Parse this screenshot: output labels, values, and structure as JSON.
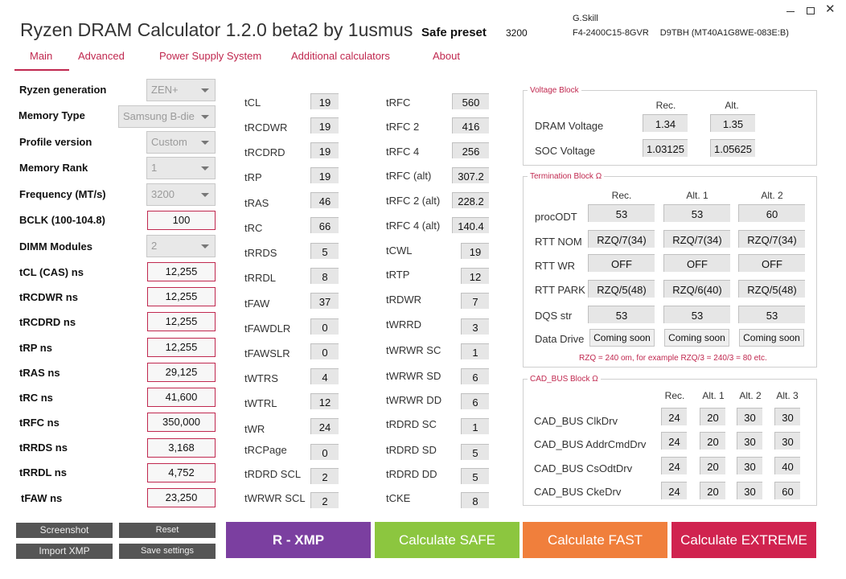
{
  "header": {
    "title": "Ryzen DRAM Calculator 1.2.0 beta2 by 1usmus",
    "preset_label": "Safe preset",
    "preset_value": "3200",
    "memory_vendor": "G.Skill",
    "memory_model": "F4-2400C15-8GVR",
    "memory_chip": "D9TBH (MT40A1G8WE-083E:B)"
  },
  "tabs": [
    "Main",
    "Advanced",
    "Power Supply System",
    "Additional calculators",
    "About"
  ],
  "left": {
    "ryzen_generation": {
      "label": "Ryzen generation",
      "value": "ZEN+"
    },
    "memory_type": {
      "label": "Memory Type",
      "value": "Samsung B-die"
    },
    "profile_version": {
      "label": "Profile version",
      "value": "Custom"
    },
    "memory_rank": {
      "label": "Memory Rank",
      "value": "1"
    },
    "frequency": {
      "label": "Frequency (MT/s)",
      "value": "3200"
    },
    "bclk": {
      "label": "BCLK (100-104.8)",
      "value": "100"
    },
    "dimm_modules": {
      "label": "DIMM Modules",
      "value": "2"
    },
    "ns_inputs": [
      {
        "label": "tCL (CAS) ns",
        "value": "12,255"
      },
      {
        "label": "tRCDWR ns",
        "value": "12,255"
      },
      {
        "label": "tRCDRD ns",
        "value": "12,255"
      },
      {
        "label": "tRP ns",
        "value": "12,255"
      },
      {
        "label": "tRAS ns",
        "value": "29,125"
      },
      {
        "label": "tRC ns",
        "value": "41,600"
      },
      {
        "label": "tRFC ns",
        "value": "350,000"
      },
      {
        "label": "tRRDS ns",
        "value": "3,168"
      },
      {
        "label": "tRRDL ns",
        "value": "4,752"
      },
      {
        "label": "tFAW ns",
        "value": "23,250"
      }
    ]
  },
  "timings_col1": [
    {
      "label": "tCL",
      "value": "19"
    },
    {
      "label": "tRCDWR",
      "value": "19"
    },
    {
      "label": "tRCDRD",
      "value": "19"
    },
    {
      "label": "tRP",
      "value": "19"
    },
    {
      "label": "tRAS",
      "value": "46"
    },
    {
      "label": "tRC",
      "value": "66"
    },
    {
      "label": "tRRDS",
      "value": "5"
    },
    {
      "label": "tRRDL",
      "value": "8"
    },
    {
      "label": "tFAW",
      "value": "37"
    },
    {
      "label": "tFAWDLR",
      "value": "0"
    },
    {
      "label": "tFAWSLR",
      "value": "0"
    },
    {
      "label": "tWTRS",
      "value": "4"
    },
    {
      "label": "tWTRL",
      "value": "12"
    },
    {
      "label": "tWR",
      "value": "24"
    },
    {
      "label": "tRCPage",
      "value": "0"
    },
    {
      "label": "tRDRD SCL",
      "value": "2"
    },
    {
      "label": "tWRWR SCL",
      "value": "2"
    }
  ],
  "timings_col2": [
    {
      "label": "tRFC",
      "value": "560"
    },
    {
      "label": "tRFC 2",
      "value": "416"
    },
    {
      "label": "tRFC 4",
      "value": "256"
    },
    {
      "label": "tRFC (alt)",
      "value": "307.2"
    },
    {
      "label": "tRFC 2 (alt)",
      "value": "228.2"
    },
    {
      "label": "tRFC 4 (alt)",
      "value": "140.4"
    },
    {
      "label": "tCWL",
      "value": "19"
    },
    {
      "label": "tRTP",
      "value": "12"
    },
    {
      "label": "tRDWR",
      "value": "7"
    },
    {
      "label": "tWRRD",
      "value": "3"
    },
    {
      "label": "tWRWR SC",
      "value": "1"
    },
    {
      "label": "tWRWR SD",
      "value": "6"
    },
    {
      "label": "tWRWR DD",
      "value": "6"
    },
    {
      "label": "tRDRD SC",
      "value": "1"
    },
    {
      "label": "tRDRD SD",
      "value": "5"
    },
    {
      "label": "tRDRD DD",
      "value": "5"
    },
    {
      "label": "tCKE",
      "value": "8"
    }
  ],
  "voltage": {
    "title": "Voltage Block",
    "headers": [
      "Rec.",
      "Alt."
    ],
    "rows": [
      {
        "label": "DRAM Voltage",
        "values": [
          "1.34",
          "1.35"
        ]
      },
      {
        "label": "SOC Voltage",
        "values": [
          "1.03125",
          "1.05625"
        ]
      }
    ]
  },
  "termination": {
    "title": "Termination Block Ω",
    "headers": [
      "Rec.",
      "Alt. 1",
      "Alt. 2"
    ],
    "rows": [
      {
        "label": "procODT",
        "values": [
          "53",
          "53",
          "60"
        ]
      },
      {
        "label": "RTT NOM",
        "values": [
          "RZQ/7(34)",
          "RZQ/7(34)",
          "RZQ/7(34)"
        ]
      },
      {
        "label": "RTT WR",
        "values": [
          "OFF",
          "OFF",
          "OFF"
        ]
      },
      {
        "label": "RTT PARK",
        "values": [
          "RZQ/5(48)",
          "RZQ/6(40)",
          "RZQ/5(48)"
        ]
      },
      {
        "label": "DQS str",
        "values": [
          "53",
          "53",
          "53"
        ]
      }
    ],
    "data_drive": {
      "label": "Data Drive",
      "buttons": [
        "Coming soon",
        "Coming soon",
        "Coming soon"
      ]
    },
    "note": "RZQ = 240 om, for example RZQ/3 = 240/3 = 80 etc."
  },
  "cadbus": {
    "title": "CAD_BUS Block Ω",
    "headers": [
      "Rec.",
      "Alt. 1",
      "Alt. 2",
      "Alt. 3"
    ],
    "rows": [
      {
        "label": "CAD_BUS ClkDrv",
        "values": [
          "24",
          "20",
          "30",
          "30"
        ]
      },
      {
        "label": "CAD_BUS AddrCmdDrv",
        "values": [
          "24",
          "20",
          "30",
          "30"
        ]
      },
      {
        "label": "CAD_BUS CsOdtDrv",
        "values": [
          "24",
          "20",
          "30",
          "40"
        ]
      },
      {
        "label": "CAD_BUS CkeDrv",
        "values": [
          "24",
          "20",
          "30",
          "60"
        ]
      }
    ]
  },
  "buttons": {
    "screenshot": "Screenshot",
    "reset": "Reset",
    "import_xmp": "Import XMP",
    "save_settings": "Save settings",
    "rxmp": "R - XMP",
    "calc_safe": "Calculate SAFE",
    "calc_fast": "Calculate FAST",
    "calc_extreme": "Calculate EXTREME"
  },
  "colors": {
    "accent": "#c0284f",
    "rxmp": "#7b3fa0",
    "safe": "#8cc63f",
    "fast": "#f07f3c",
    "extreme": "#d0234f"
  }
}
